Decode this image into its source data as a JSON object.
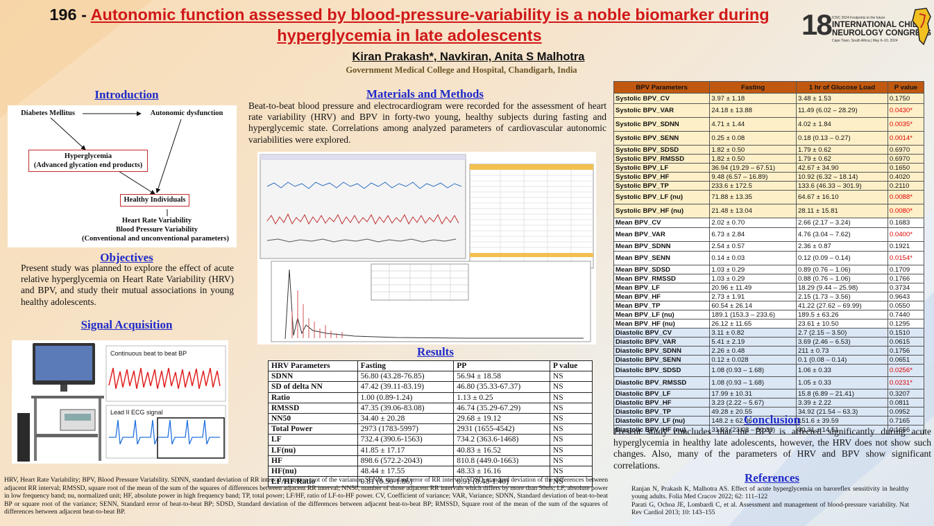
{
  "header": {
    "number": "196 - ",
    "title": "Autonomic function assessed by blood-pressure-variability is a noble biomarker during hyperglycemia in late adolescents",
    "authors": "Kiran Prakash*, Navkiran, Anita S Malhotra",
    "affiliation": "Government Medical College and Hospital, Chandigarh, India"
  },
  "logo": {
    "number": "18",
    "tagline": "ICNC 2024 Footprints to the future",
    "line1": "INTERNATIONAL CHILD",
    "line2": "NEUROLOGY CONGRESS",
    "sub": "Cape Town, South Africa | May 6–10, 2024"
  },
  "introduction": {
    "heading": "Introduction",
    "diagram": {
      "diabetes": "Diabetes Mellitus",
      "autonomic": "Autonomic dysfunction",
      "hyperglycemia": "Hyperglycemia",
      "age": "(Advanced glycation end products)",
      "healthy": "Healthy Individuals",
      "hrv": "Heart Rate Variability",
      "bpv": "Blood Pressure Variability",
      "params": "(Conventional and unconventional parameters)"
    }
  },
  "objectives": {
    "heading": "Objectives",
    "text": "Present study was planned to explore the effect of acute relative hyperglycemia on Heart Rate Variability (HRV) and BPV, and study their mutual associations in young healthy adolescents."
  },
  "signal": {
    "heading": "Signal Acquisition",
    "bp_label": "Continuous beat to beat BP",
    "ecg_label": "Lead II ECG signal"
  },
  "methods": {
    "heading": "Materials and Methods",
    "text": "Beat-to-beat blood pressure and electrocardiogram were recorded for the assessment of heart rate variability (HRV) and BPV in forty-two young, healthy subjects during fasting and hyperglycemic state. Correlations among analyzed parameters of cardiovascular autonomic variabilities were explored."
  },
  "results": {
    "heading": "Results",
    "columns": [
      "HRV Parameters",
      "Fasting",
      "PP",
      "P value"
    ],
    "rows": [
      [
        "SDNN",
        "56.80 (43.28-76.85)",
        "56.94 ± 18.58",
        "NS"
      ],
      [
        "SD of delta NN",
        "47.42 (39.11-83.19)",
        "46.80 (35.33-67.37)",
        "NS"
      ],
      [
        "Ratio",
        "1.00 (0.89-1.24)",
        "1.13 ± 0.25",
        "NS"
      ],
      [
        "RMSSD",
        "47.35 (39.06-83.08)",
        "46.74 (35.29-67.29)",
        "NS"
      ],
      [
        "NN50",
        "34.40 ± 20.28",
        "29.68 ± 19.12",
        "NS"
      ],
      [
        "Total Power",
        "2973 (1783-5997)",
        "2931 (1655-4542)",
        "NS"
      ],
      [
        "LF",
        "732.4 (390.6-1563)",
        "734.2 (363.6-1468)",
        "NS"
      ],
      [
        "LF(nu)",
        "41.85 ± 17.17",
        "40.83 ± 16.52",
        "NS"
      ],
      [
        "HF",
        "898.6 (572.2-2043)",
        "810.8 (449.0-1663)",
        "NS"
      ],
      [
        "HF(nu)",
        "48.44 ± 17.55",
        "48.33 ± 16.16",
        "NS"
      ],
      [
        "LF/HF Ratio",
        "0.81 (0.50-1.86)",
        "0.91 (0.48-1.40)",
        "NS"
      ]
    ]
  },
  "footnote": "HRV, Heart Rate Variability; BPV, Blood Pressure Variability. SDNN, standard deviation of RR interval or square root of the variance; SENN, standard error of RR interval; SDSD, standard deviation of the differences between adjacent RR interval; RMSSD, square root of the mean of the sum of the squares of differences between adjacent RR interval; NN50, number of those adjacent RR intervals which differs by more than 50ms; LF, absolute power in low frequency band; nu, normalized unit; HF, absolute power in high frequency band; TP, total power; LF/HF, ratio of LF-to-HF power. CV, Coefficient of variance; VAR, Variance; SDNN, Standard deviation of beat-to-beat BP or square root of the variance; SENN, Standard error of beat-to-beat BP; SDSD, Standard deviation of the differences between adjacent beat-to-beat BP; RMSSD, Square root of the mean of the sum of the squares of differences between adjacent beat-to-beat BP.",
  "bpv": {
    "columns": [
      "BPV Parameters",
      "Fasting",
      "1 hr of Glucose Load",
      "P value"
    ],
    "rows": [
      {
        "g": 1,
        "c": [
          "Systolic BPV_CV",
          "3.97 ± 1.18",
          "3.48 ± 1.53",
          "0.1750"
        ],
        "s": false,
        "h": 15
      },
      {
        "g": 1,
        "c": [
          "Systolic BPV_VAR",
          "24.18 ± 13.88",
          "11.49 (6.02 – 28.29)",
          "0.0430*"
        ],
        "s": true,
        "h": 20
      },
      {
        "g": 1,
        "c": [
          "Systolic BPV_SDNN",
          "4.71 ± 1.44",
          "4.02 ± 1.84",
          "0.0035*"
        ],
        "s": true,
        "h": 20
      },
      {
        "g": 1,
        "c": [
          "Systolic BPV_SENN",
          "0.25 ± 0.08",
          "0.18 (0.13 – 0.27)",
          "0.0014*"
        ],
        "s": true,
        "h": 20
      },
      {
        "g": 1,
        "c": [
          "Systolic BPV_SDSD",
          "1.82 ± 0.50",
          "1.79 ± 0.62",
          "0.6970"
        ],
        "s": false,
        "h": 13
      },
      {
        "g": 1,
        "c": [
          "Systolic BPV_RMSSD",
          "1.82 ± 0.50",
          "1.79 ± 0.62",
          "0.6970"
        ],
        "s": false,
        "h": 13
      },
      {
        "g": 1,
        "c": [
          "Systolic BPV_LF",
          "36.94 (19.29 – 67.51)",
          "42.67 ± 34.90",
          "0.1650"
        ],
        "s": false,
        "h": 13
      },
      {
        "g": 1,
        "c": [
          "Systolic BPV_HF",
          "9.48 (6.57 – 16.89)",
          "10.92 (6.32 – 18.14)",
          "0.4020"
        ],
        "s": false,
        "h": 13
      },
      {
        "g": 1,
        "c": [
          "Systolic BPV_TP",
          "233.6 ± 172.5",
          "133.6 (46.33 – 301.9)",
          "0.2110"
        ],
        "s": false,
        "h": 13
      },
      {
        "g": 1,
        "c": [
          "Systolic BPV_LF (nu)",
          "71.88 ± 13.35",
          "64.67 ± 16.10",
          "0.0088*"
        ],
        "s": true,
        "h": 20
      },
      {
        "g": 1,
        "c": [
          "Systolic BPV_HF (nu)",
          "21.48 ± 13.04",
          "28.11 ± 15.81",
          "0.0080*"
        ],
        "s": true,
        "h": 20
      },
      {
        "g": 2,
        "c": [
          "Mean BPV_CV",
          "2.02 ± 0.70",
          "2.66 (2.17 – 3.24)",
          "0.1683"
        ],
        "s": false,
        "h": 14
      },
      {
        "g": 2,
        "c": [
          "Mean BPV_VAR",
          "6.73 ± 2.84",
          "4.76 (3.04 – 7.62)",
          "0.0400*"
        ],
        "s": true,
        "h": 20
      },
      {
        "g": 2,
        "c": [
          "Mean BPV_SDNN",
          "2.54 ± 0.57",
          "2.36 ± 0.87",
          "0.1921"
        ],
        "s": false,
        "h": 14
      },
      {
        "g": 2,
        "c": [
          "Mean BPV_SENN",
          "0.14 ± 0.03",
          "0.12 (0.09 – 0.14)",
          "0.0154*"
        ],
        "s": true,
        "h": 20
      },
      {
        "g": 2,
        "c": [
          "Mean BPV_SDSD",
          "1.03 ± 0.29",
          "0.89 (0.76 – 1.06)",
          "0.1709"
        ],
        "s": false,
        "h": 13
      },
      {
        "g": 2,
        "c": [
          "Mean BPV_RMSSD",
          "1.03 ± 0.29",
          "0.88 (0.76 – 1.06)",
          "0.1766"
        ],
        "s": false,
        "h": 13
      },
      {
        "g": 2,
        "c": [
          "Mean BPV_LF",
          "20.96 ± 11.49",
          "18.29 (9.44 – 25.98)",
          "0.3734"
        ],
        "s": false,
        "h": 13
      },
      {
        "g": 2,
        "c": [
          "Mean BPV_HF",
          "2.73 ± 1.91",
          "2.15 (1.73 – 3.56)",
          "0.9643"
        ],
        "s": false,
        "h": 13
      },
      {
        "g": 2,
        "c": [
          "Mean BPV_TP",
          "60.54 ± 26.14",
          "41.22 (27.62 – 69.99)",
          "0.0550"
        ],
        "s": false,
        "h": 13
      },
      {
        "g": 2,
        "c": [
          "Mean BPV_LF (nu)",
          "189.1 (153.3 – 233.6)",
          "189.5 ± 63.26",
          "0.7440"
        ],
        "s": false,
        "h": 13
      },
      {
        "g": 2,
        "c": [
          "Mean BPV_HF (nu)",
          "26.12 ± 11.65",
          "23.61 ± 10.50",
          "0.1295"
        ],
        "s": false,
        "h": 13
      },
      {
        "g": 3,
        "c": [
          "Diastolic BPV_CV",
          "3.11 ± 0.82",
          "2.7 (2.15 – 3.50)",
          "0.1510"
        ],
        "s": false,
        "h": 13
      },
      {
        "g": 3,
        "c": [
          "Diastolic BPV_VAR",
          "5.41 ± 2.19",
          "3.69 (2.46 – 6.53)",
          "0.0615"
        ],
        "s": false,
        "h": 13
      },
      {
        "g": 3,
        "c": [
          "Diastolic BPV_SDNN",
          "2.26 ± 0.48",
          "211 ± 0.73",
          "0.1756"
        ],
        "s": false,
        "h": 13
      },
      {
        "g": 3,
        "c": [
          "Diastolic BPV_SENN",
          "0.12 ± 0.028",
          "0.1 (0.08 – 0.14)",
          "0.0651"
        ],
        "s": false,
        "h": 13
      },
      {
        "g": 3,
        "c": [
          "Diastolic BPV_SDSD",
          "1.08 (0.93 – 1.68)",
          "1.06 ± 0.33",
          "0.0256*"
        ],
        "s": true,
        "h": 18
      },
      {
        "g": 3,
        "c": [
          "Diastolic BPV_RMSSD",
          "1.08 (0.93 – 1.68)",
          "1.05 ± 0.33",
          "0.0231*"
        ],
        "s": true,
        "h": 18
      },
      {
        "g": 3,
        "c": [
          "Diastolic BPV_LF",
          "17.99 ± 10.31",
          "15.8 (6.89 – 21.41)",
          "0.3207"
        ],
        "s": false,
        "h": 13
      },
      {
        "g": 3,
        "c": [
          "Diastolic BPV_HF",
          "3.23 (2.22 – 5.67)",
          "3.39 ± 2.22",
          "0.0811"
        ],
        "s": false,
        "h": 13
      },
      {
        "g": 3,
        "c": [
          "Diastolic BPV_TP",
          "49.28 ± 20.55",
          "34.92 (21.54 – 63.3)",
          "0.0952"
        ],
        "s": false,
        "h": 13
      },
      {
        "g": 3,
        "c": [
          "Diastolic BPV_LF (nu)",
          "148.2 ± 62.06",
          "151.6 ± 39.59",
          "0.7165"
        ],
        "s": false,
        "h": 13
      },
      {
        "g": 3,
        "c": [
          "Diastolic BPV_HF (nu)",
          "31.93 (23.08 – 50.36)",
          "30.31 ± 14.51",
          "0.1656"
        ],
        "s": false,
        "h": 13
      }
    ]
  },
  "conclusion": {
    "heading": "Conclusion",
    "text": "Present study concludes that the BPV is affected significantly during acute hyperglycemia in healthy late adolescents, however, the HRV does not show such changes. Also, many of the parameters of HRV and BPV show significant correlations."
  },
  "references": {
    "heading": "References",
    "items": [
      "Ranjan N, Prakash K, Malhotra AS. Effect of acute hyperglycemia on baroreflex sensitivity in healthy young adults. Folia Med Cracov 2022; 62: 111–122",
      "Parati G, Ochoa JE, Lombardi C, et al. Assessment and management of blood-pressure variability. Nat Rev Cardiol 2013; 10: 143–155"
    ]
  }
}
